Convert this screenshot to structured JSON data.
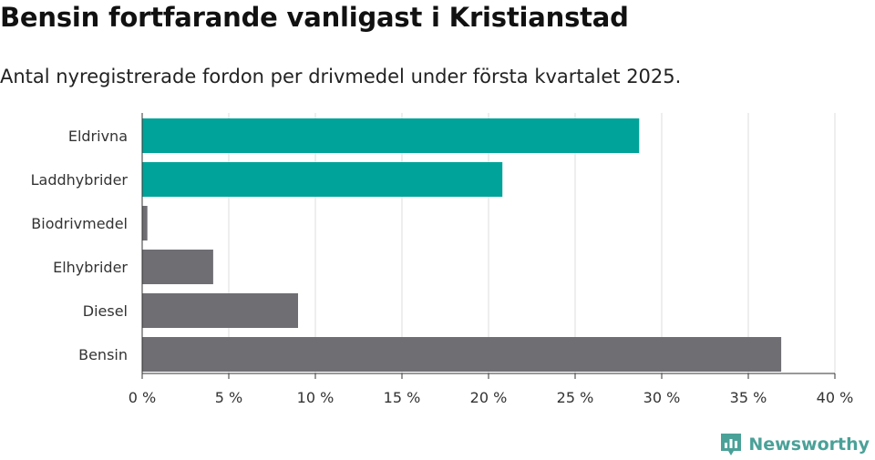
{
  "header": {
    "title": "Bensin fortfarande vanligast i Kristianstad",
    "subtitle": "Antal nyregistrerade fordon per drivmedel under första kvartalet 2025."
  },
  "brand": {
    "name": "Newsworthy",
    "icon": "newsworthy-logo-icon",
    "color": "#4aa198"
  },
  "chart_data": {
    "type": "bar",
    "orientation": "horizontal",
    "categories": [
      "Eldrivna",
      "Laddhybrider",
      "Biodrivmedel",
      "Elhybrider",
      "Diesel",
      "Bensin"
    ],
    "values": [
      28.7,
      20.8,
      0.3,
      4.1,
      9.0,
      36.9
    ],
    "colors": [
      "#00a39a",
      "#00a39a",
      "#6e6e73",
      "#6e6e73",
      "#6e6e73",
      "#6e6e73"
    ],
    "xlim": [
      0,
      40
    ],
    "xticks": [
      0,
      5,
      10,
      15,
      20,
      25,
      30,
      35,
      40
    ],
    "xtick_labels": [
      "0 %",
      "5 %",
      "10 %",
      "15 %",
      "20 %",
      "25 %",
      "30 %",
      "35 %",
      "40 %"
    ],
    "grid": true,
    "legend": "none"
  }
}
